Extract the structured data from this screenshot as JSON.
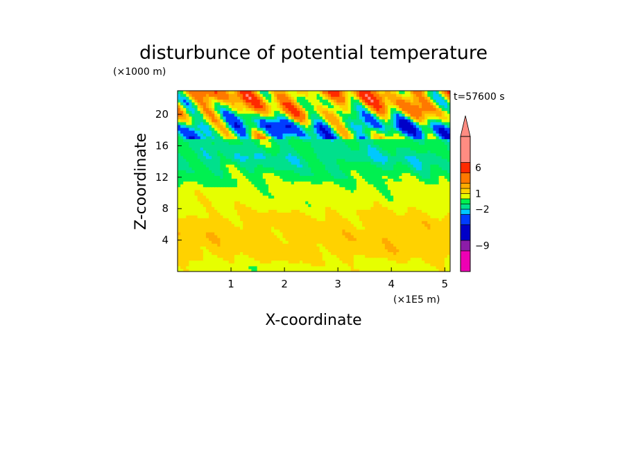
{
  "chart_data": {
    "type": "heatmap",
    "title": "disturbunce of potential temperature",
    "time_label": "t=57600 s",
    "xlabel": "X-coordinate",
    "ylabel": "Z-coordinate",
    "x_unit": "(×1E5 m)",
    "y_unit": "(×1000 m)",
    "xlim": [
      0,
      5.1
    ],
    "ylim": [
      0,
      23
    ],
    "x_ticks": [
      1,
      2,
      3,
      4,
      5
    ],
    "y_ticks": [
      4,
      8,
      12,
      16,
      20
    ],
    "colorbar_labels": [
      {
        "level": 6,
        "text": "6"
      },
      {
        "level": 1,
        "text": "1"
      },
      {
        "level": -2,
        "text": "−2"
      },
      {
        "level": -9,
        "text": "−9"
      }
    ],
    "colorbar_bands": [
      {
        "lo": -14,
        "hi": -10,
        "color": "#ee00b4"
      },
      {
        "lo": -10,
        "hi": -8,
        "color": "#8c1ca8"
      },
      {
        "lo": -8,
        "hi": -5,
        "color": "#0000c8"
      },
      {
        "lo": -5,
        "hi": -3,
        "color": "#003cff"
      },
      {
        "lo": -3,
        "hi": -2,
        "color": "#00c8ff"
      },
      {
        "lo": -2,
        "hi": -1,
        "color": "#00e08c"
      },
      {
        "lo": -1,
        "hi": 0,
        "color": "#00f050"
      },
      {
        "lo": 0,
        "hi": 1,
        "color": "#e6ff00"
      },
      {
        "lo": 1,
        "hi": 2,
        "color": "#ffd200"
      },
      {
        "lo": 2,
        "hi": 3,
        "color": "#ffaa00"
      },
      {
        "lo": 3,
        "hi": 5,
        "color": "#ff7800"
      },
      {
        "lo": 5,
        "hi": 7,
        "color": "#ff2a00"
      },
      {
        "lo": 7,
        "hi": 12,
        "color": "#ff8c82"
      }
    ],
    "profile_levels": [
      {
        "z": 0.5,
        "value": 0.5
      },
      {
        "z": 2.5,
        "value": 1.5
      },
      {
        "z": 4.5,
        "value": 1.6
      },
      {
        "z": 6.5,
        "value": 1.4
      },
      {
        "z": 8.5,
        "value": 0.6
      },
      {
        "z": 10.5,
        "value": 0.4
      },
      {
        "z": 12.5,
        "value": -0.6
      },
      {
        "z": 14.5,
        "value": -1.6
      },
      {
        "z": 16.5,
        "value": -0.8
      },
      {
        "z": 18.5,
        "value": -2.5
      },
      {
        "z": 20.5,
        "value": 1.5
      },
      {
        "z": 22.5,
        "value": 2.5
      }
    ]
  }
}
